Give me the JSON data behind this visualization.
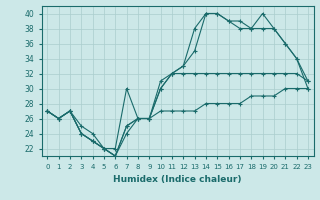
{
  "background_color": "#cce8e8",
  "line_color": "#1a6b6b",
  "grid_color": "#aacece",
  "xlim": [
    -0.5,
    23.5
  ],
  "ylim": [
    21,
    41
  ],
  "yticks": [
    22,
    24,
    26,
    28,
    30,
    32,
    34,
    36,
    38,
    40
  ],
  "xticks": [
    0,
    1,
    2,
    3,
    4,
    5,
    6,
    7,
    8,
    9,
    10,
    11,
    12,
    13,
    14,
    15,
    16,
    17,
    18,
    19,
    20,
    21,
    22,
    23
  ],
  "xlabel": "Humidex (Indice chaleur)",
  "series": [
    {
      "x": [
        0,
        1,
        2,
        3,
        4,
        5,
        6,
        7,
        8,
        9,
        10,
        11,
        12,
        13,
        14,
        15,
        16,
        17,
        18,
        19,
        20,
        21,
        22,
        23
      ],
      "y": [
        27,
        26,
        27,
        25,
        24,
        22,
        22,
        30,
        26,
        26,
        31,
        32,
        33,
        35,
        40,
        40,
        39,
        39,
        38,
        38,
        38,
        36,
        34,
        31
      ]
    },
    {
      "x": [
        0,
        1,
        2,
        3,
        4,
        5,
        6,
        7,
        8,
        9,
        10,
        11,
        12,
        13,
        14,
        15,
        16,
        17,
        18,
        19,
        20,
        21,
        22,
        23
      ],
      "y": [
        27,
        26,
        27,
        24,
        23,
        22,
        21,
        24,
        26,
        26,
        30,
        32,
        33,
        38,
        40,
        40,
        39,
        38,
        38,
        40,
        38,
        36,
        34,
        30
      ]
    },
    {
      "x": [
        0,
        1,
        2,
        3,
        4,
        5,
        6,
        7,
        8,
        9,
        10,
        11,
        12,
        13,
        14,
        15,
        16,
        17,
        18,
        19,
        20,
        21,
        22,
        23
      ],
      "y": [
        27,
        26,
        27,
        24,
        23,
        22,
        21,
        25,
        26,
        26,
        30,
        32,
        32,
        32,
        32,
        32,
        32,
        32,
        32,
        32,
        32,
        32,
        32,
        31
      ]
    },
    {
      "x": [
        0,
        1,
        2,
        3,
        4,
        5,
        6,
        7,
        8,
        9,
        10,
        11,
        12,
        13,
        14,
        15,
        16,
        17,
        18,
        19,
        20,
        21,
        22,
        23
      ],
      "y": [
        27,
        26,
        27,
        24,
        23,
        22,
        21,
        25,
        26,
        26,
        27,
        27,
        27,
        27,
        28,
        28,
        28,
        28,
        29,
        29,
        29,
        30,
        30,
        30
      ]
    }
  ]
}
